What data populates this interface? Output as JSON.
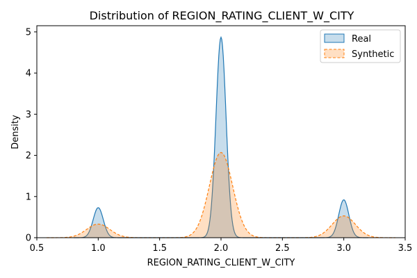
{
  "chart_data": {
    "type": "area",
    "title": "Distribution of REGION_RATING_CLIENT_W_CITY",
    "xlabel": "REGION_RATING_CLIENT_W_CITY",
    "ylabel": "Density",
    "xlim": [
      0.5,
      3.5
    ],
    "ylim": [
      0,
      5.15
    ],
    "xticks": [
      "0.5",
      "1.0",
      "1.5",
      "2.0",
      "2.5",
      "3.0",
      "3.5"
    ],
    "yticks": [
      "0",
      "1",
      "2",
      "3",
      "4",
      "5"
    ],
    "grid": false,
    "legend_position": "top-right",
    "series": [
      {
        "name": "Real",
        "color": "#1f77b4",
        "line_style": "solid",
        "x_range": [
          0.8,
          3.2
        ],
        "peaks": [
          {
            "x": 1.0,
            "density": 0.73
          },
          {
            "x": 2.0,
            "density": 4.87
          },
          {
            "x": 3.0,
            "density": 0.92
          }
        ]
      },
      {
        "name": "Synthetic",
        "color": "#ff7f0e",
        "line_style": "dashed",
        "x_range": [
          0.58,
          3.42
        ],
        "peaks": [
          {
            "x": 1.0,
            "density": 0.33
          },
          {
            "x": 2.0,
            "density": 2.07
          },
          {
            "x": 3.0,
            "density": 0.53
          }
        ]
      }
    ]
  }
}
